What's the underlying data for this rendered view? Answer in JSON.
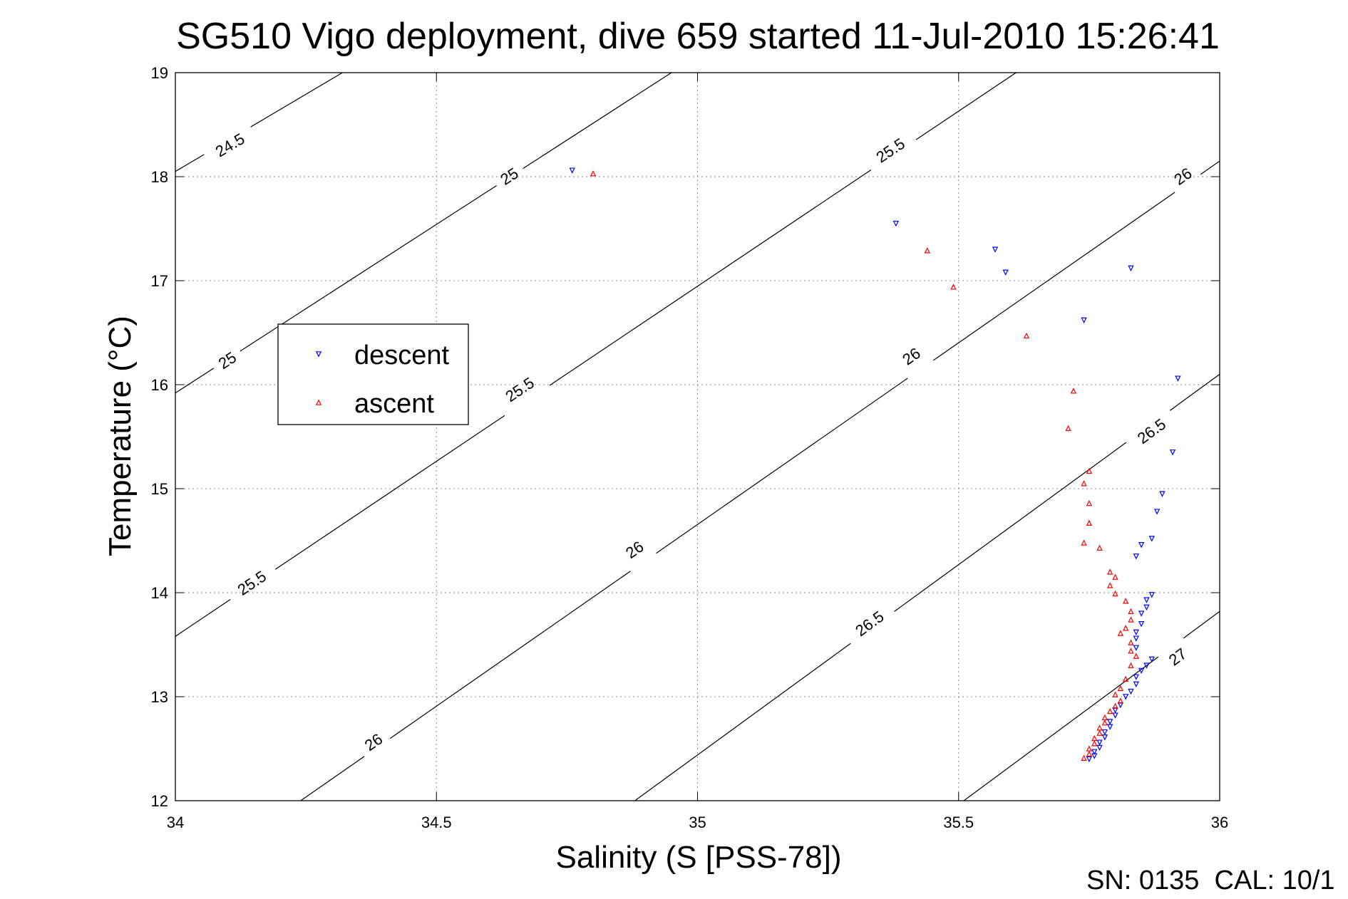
{
  "chart_data": {
    "type": "scatter",
    "title": "SG510 Vigo deployment, dive 659 started 11-Jul-2010 15:26:41",
    "xlabel": "Salinity (S [PSS-78])",
    "ylabel": "Temperature (°C)",
    "xlim": [
      34,
      36
    ],
    "ylim": [
      12,
      19
    ],
    "xticks": [
      "34",
      "34.5",
      "35",
      "35.5",
      "36"
    ],
    "yticks": [
      "12",
      "13",
      "14",
      "15",
      "16",
      "17",
      "18",
      "19"
    ],
    "grid": true,
    "legend": {
      "position": "upper-left"
    },
    "footer": "SN: 0135  CAL: 10/1",
    "series": [
      {
        "name": "descent",
        "color": "#0000ff",
        "marker": "triangle-down",
        "points": [
          [
            34.76,
            18.06
          ],
          [
            35.38,
            17.55
          ],
          [
            35.57,
            17.3
          ],
          [
            35.59,
            17.08
          ],
          [
            35.83,
            17.12
          ],
          [
            35.74,
            16.62
          ],
          [
            35.92,
            16.06
          ],
          [
            35.91,
            15.35
          ],
          [
            35.89,
            14.95
          ],
          [
            35.88,
            14.78
          ],
          [
            35.87,
            14.52
          ],
          [
            35.85,
            14.46
          ],
          [
            35.84,
            14.35
          ],
          [
            35.87,
            13.98
          ],
          [
            35.86,
            13.93
          ],
          [
            35.86,
            13.86
          ],
          [
            35.85,
            13.8
          ],
          [
            35.85,
            13.7
          ],
          [
            35.84,
            13.62
          ],
          [
            35.84,
            13.56
          ],
          [
            35.84,
            13.47
          ],
          [
            35.87,
            13.36
          ],
          [
            35.86,
            13.3
          ],
          [
            35.85,
            13.25
          ],
          [
            35.84,
            13.19
          ],
          [
            35.84,
            13.12
          ],
          [
            35.83,
            13.05
          ],
          [
            35.82,
            13.0
          ],
          [
            35.81,
            12.92
          ],
          [
            35.8,
            12.87
          ],
          [
            35.8,
            12.82
          ],
          [
            35.79,
            12.76
          ],
          [
            35.79,
            12.71
          ],
          [
            35.78,
            12.66
          ],
          [
            35.78,
            12.61
          ],
          [
            35.77,
            12.56
          ],
          [
            35.77,
            12.51
          ],
          [
            35.76,
            12.47
          ],
          [
            35.76,
            12.43
          ],
          [
            35.75,
            12.4
          ]
        ]
      },
      {
        "name": "ascent",
        "color": "#ff0000",
        "marker": "triangle-up",
        "points": [
          [
            34.8,
            18.03
          ],
          [
            35.44,
            17.29
          ],
          [
            35.49,
            16.94
          ],
          [
            35.63,
            16.47
          ],
          [
            35.72,
            15.94
          ],
          [
            35.71,
            15.58
          ],
          [
            35.75,
            15.17
          ],
          [
            35.74,
            15.05
          ],
          [
            35.75,
            14.86
          ],
          [
            35.75,
            14.67
          ],
          [
            35.74,
            14.48
          ],
          [
            35.77,
            14.43
          ],
          [
            35.79,
            14.2
          ],
          [
            35.8,
            14.15
          ],
          [
            35.79,
            14.07
          ],
          [
            35.8,
            13.99
          ],
          [
            35.82,
            13.92
          ],
          [
            35.83,
            13.82
          ],
          [
            35.83,
            13.74
          ],
          [
            35.82,
            13.66
          ],
          [
            35.81,
            13.61
          ],
          [
            35.83,
            13.52
          ],
          [
            35.83,
            13.44
          ],
          [
            35.84,
            13.39
          ],
          [
            35.83,
            13.3
          ],
          [
            35.82,
            13.17
          ],
          [
            35.81,
            13.08
          ],
          [
            35.8,
            13.02
          ],
          [
            35.81,
            12.96
          ],
          [
            35.8,
            12.91
          ],
          [
            35.79,
            12.86
          ],
          [
            35.78,
            12.8
          ],
          [
            35.78,
            12.75
          ],
          [
            35.77,
            12.7
          ],
          [
            35.77,
            12.65
          ],
          [
            35.76,
            12.6
          ],
          [
            35.76,
            12.55
          ],
          [
            35.75,
            12.5
          ],
          [
            35.75,
            12.45
          ],
          [
            35.74,
            12.41
          ]
        ]
      }
    ],
    "contours": [
      {
        "level": "24.5",
        "points": [
          [
            34,
            18.05
          ],
          [
            34.32,
            19.0
          ]
        ],
        "labels": [
          [
            34.105,
            18.3
          ]
        ]
      },
      {
        "level": "25",
        "points": [
          [
            34,
            15.92
          ],
          [
            34.95,
            19.0
          ]
        ],
        "labels": [
          [
            34.1,
            16.23
          ],
          [
            34.64,
            18.0
          ]
        ]
      },
      {
        "level": "25.5",
        "points": [
          [
            34,
            13.58
          ],
          [
            35.61,
            19.0
          ]
        ],
        "labels": [
          [
            34.147,
            14.09
          ],
          [
            34.66,
            15.95
          ],
          [
            35.37,
            18.25
          ]
        ]
      },
      {
        "level": "26",
        "points": [
          [
            34.24,
            12.0
          ],
          [
            36,
            18.15
          ]
        ],
        "labels": [
          [
            34.38,
            12.56
          ],
          [
            34.88,
            14.41
          ],
          [
            35.41,
            16.27
          ],
          [
            35.93,
            18.0
          ]
        ]
      },
      {
        "level": "26.5",
        "points": [
          [
            34.88,
            12.0
          ],
          [
            36,
            16.1
          ]
        ],
        "labels": [
          [
            35.33,
            13.7
          ],
          [
            35.87,
            15.55
          ]
        ]
      },
      {
        "level": "27",
        "points": [
          [
            35.51,
            12.0
          ],
          [
            36,
            13.82
          ]
        ],
        "labels": [
          [
            35.92,
            13.38
          ]
        ]
      }
    ]
  }
}
